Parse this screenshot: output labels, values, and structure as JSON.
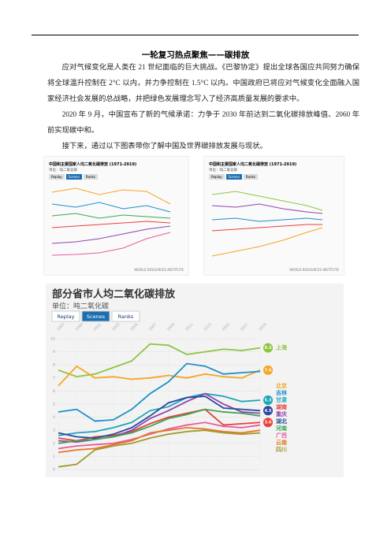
{
  "header": {
    "title": "一轮复习热点聚焦——碳排放"
  },
  "paragraphs": [
    "应对气候变化是人类在 21 世纪面临的巨大挑战。《巴黎协定》提出全球各国应共同努力确保将全球温升控制在 2°C 以内，并力争控制在 1.5°C 以内。中国政府已将应对气候变化全面融入国家经济社会发展的总战略，并把绿色发展理念写入了经济高质量发展的要求中。",
    "2020 年 9 月，中国宣布了新的气候承诺：力争于 2030 年前达到二氧化碳排放峰值、2060 年前实现碳中和。",
    "接下来，通过以下图表带你了解中国及世界碳排放发展与现状。"
  ],
  "figures": [
    {
      "title": "中国和主要国家人均二氧化碳排放 (1971-2019)",
      "unit": "单位：吨二氧化碳",
      "buttons": [
        "Replay",
        "Scenes",
        "Ranks"
      ],
      "logo": "WORLD RESOURCES INSTITUTE"
    },
    {
      "title": "中国和主要国家人均二氧化碳排放 (1971-2019)",
      "unit": "单位：吨二氧化碳",
      "buttons": [
        "Replay",
        "Scenes",
        "Ranks"
      ],
      "logo": "WORLD RESOURCES INSTITUTE"
    }
  ],
  "chart_data": {
    "type": "line",
    "title": "部分省市人均二氧化碳排放",
    "unit": "单位：吨二氧化碳",
    "buttons": [
      "Replay",
      "Scenes",
      "Ranks"
    ],
    "categories": [
      "1997",
      "1999",
      "2001",
      "2003",
      "2005",
      "2007",
      "2009",
      "2011",
      "2013",
      "2015",
      "2017",
      "2019"
    ],
    "ylim": [
      0,
      10
    ],
    "yticks": [
      0,
      1,
      2,
      3,
      4,
      5,
      6,
      7,
      8,
      9,
      10
    ],
    "grid": true,
    "series": [
      {
        "name": "上海",
        "color": "#8cc63f",
        "show_value": true,
        "values": [
          7.6,
          7.1,
          7.3,
          7.8,
          8.3,
          9.6,
          9.5,
          8.8,
          9.0,
          9.2,
          9.1,
          9.3
        ]
      },
      {
        "name": "北京",
        "color": "#f5a623",
        "show_value": true,
        "values": [
          6.4,
          7.9,
          7.0,
          7.1,
          6.9,
          7.0,
          7.2,
          7.0,
          7.3,
          7.1,
          7.0,
          7.6
        ]
      },
      {
        "name": "吉林",
        "color": "#1b8fc9",
        "values": [
          4.4,
          4.6,
          3.7,
          3.8,
          4.6,
          5.8,
          6.7,
          8.1,
          7.9,
          7.3,
          7.4,
          7.5
        ]
      },
      {
        "name": "甘肃",
        "color": "#1aa6b7",
        "show_value": true,
        "values": [
          2.6,
          2.8,
          2.9,
          3.2,
          3.6,
          4.5,
          4.8,
          5.5,
          5.8,
          5.6,
          5.2,
          5.3
        ]
      },
      {
        "name": "湖南",
        "color": "#e8413c",
        "show_value": true,
        "values": [
          2.4,
          2.2,
          2.5,
          2.6,
          2.9,
          3.5,
          4.0,
          4.3,
          4.6,
          3.4,
          3.5,
          3.6
        ]
      },
      {
        "name": "重庆",
        "color": "#8e44ad",
        "values": [
          2.2,
          2.1,
          2.3,
          2.5,
          3.0,
          3.9,
          4.5,
          5.2,
          5.8,
          5.0,
          4.4,
          4.3
        ]
      },
      {
        "name": "湖北",
        "color": "#2a4a9b",
        "show_value": true,
        "values": [
          2.8,
          2.5,
          2.4,
          2.7,
          3.2,
          4.1,
          5.1,
          5.5,
          5.6,
          4.7,
          4.6,
          4.5
        ]
      },
      {
        "name": "河南",
        "color": "#3aa655",
        "values": [
          2.0,
          2.2,
          2.3,
          2.5,
          2.8,
          3.3,
          3.9,
          4.2,
          4.6,
          4.4,
          4.3,
          4.1
        ]
      },
      {
        "name": "广西",
        "color": "#e85a9c",
        "values": [
          1.6,
          1.8,
          1.9,
          2.0,
          2.3,
          2.7,
          3.1,
          3.4,
          3.6,
          3.3,
          3.2,
          3.4
        ]
      },
      {
        "name": "云南",
        "color": "#e87722",
        "values": [
          1.3,
          1.5,
          1.6,
          1.9,
          2.2,
          2.8,
          3.0,
          3.2,
          3.1,
          2.9,
          2.8,
          3.0
        ]
      },
      {
        "name": "四川",
        "color": "#a09a30",
        "values": [
          0.2,
          0.4,
          1.5,
          1.8,
          2.0,
          2.4,
          2.7,
          2.9,
          3.0,
          2.8,
          2.7,
          2.8
        ]
      }
    ]
  }
}
